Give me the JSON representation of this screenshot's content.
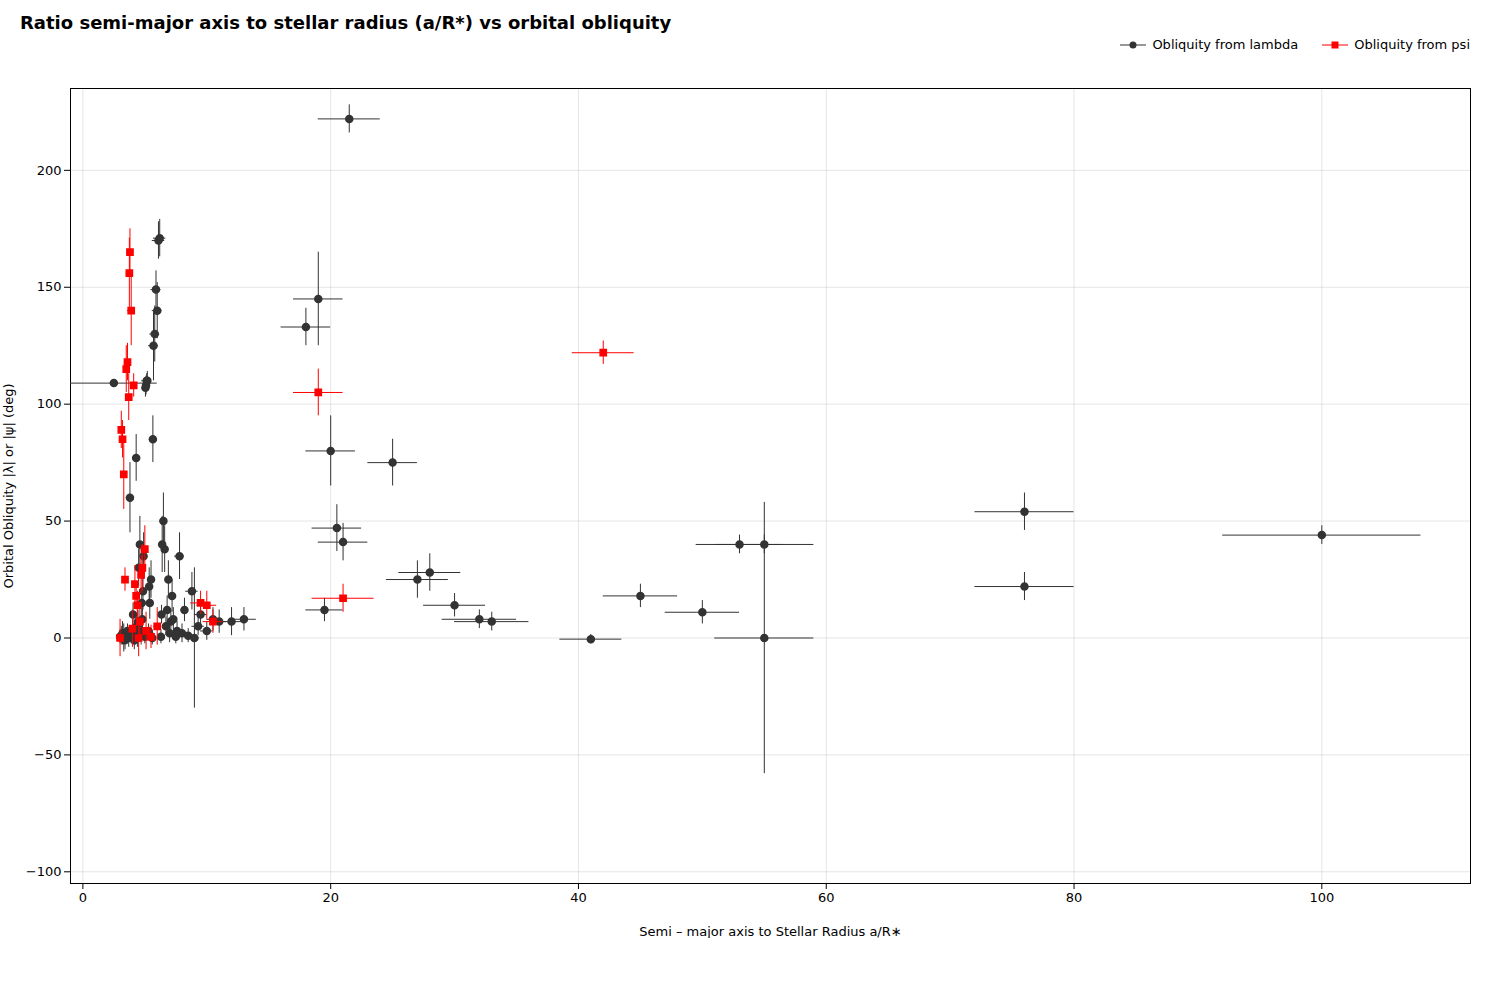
{
  "chart_data": {
    "type": "scatter",
    "title": "Ratio semi-major axis to stellar radius (a/R*) vs orbital obliquity",
    "xlabel": "Semi – major axis to Stellar Radius a/R∗",
    "ylabel": "Orbital Obliquity |λ| or |ψ| (deg)",
    "xlim": [
      -1,
      112
    ],
    "ylim": [
      -105,
      235
    ],
    "xticks": [
      0,
      20,
      40,
      60,
      80,
      100
    ],
    "yticks": [
      -100,
      -50,
      0,
      50,
      100,
      150,
      200
    ],
    "grid": true,
    "legend": "upper right",
    "series": [
      {
        "name": "Obliquity from lambda",
        "color": "#333333",
        "marker": "circle",
        "points": [
          {
            "x": 2.5,
            "y": 109.0,
            "xerr": 3.5,
            "yerr": 1.5
          },
          {
            "x": 3.0,
            "y": 0.5,
            "xerr": 0.2,
            "yerr": 3
          },
          {
            "x": 3.1,
            "y": 1.0,
            "xerr": 0.2,
            "yerr": 4
          },
          {
            "x": 3.2,
            "y": 2.0,
            "xerr": 0.2,
            "yerr": 5
          },
          {
            "x": 3.3,
            "y": 0.0,
            "xerr": 0.2,
            "yerr": 6
          },
          {
            "x": 3.4,
            "y": -1.0,
            "xerr": 0.15,
            "yerr": 4
          },
          {
            "x": 3.5,
            "y": 1.5,
            "xerr": 0.2,
            "yerr": 3
          },
          {
            "x": 3.6,
            "y": 3.0,
            "xerr": 0.2,
            "yerr": 3
          },
          {
            "x": 3.7,
            "y": 0.0,
            "xerr": 0.15,
            "yerr": 4
          },
          {
            "x": 3.8,
            "y": 60.0,
            "xerr": 0.3,
            "yerr": 15
          },
          {
            "x": 3.85,
            "y": 1.5,
            "xerr": 0.15,
            "yerr": 3
          },
          {
            "x": 3.9,
            "y": 0.5,
            "xerr": 0.15,
            "yerr": 3
          },
          {
            "x": 4.0,
            "y": 2.0,
            "xerr": 0.15,
            "yerr": 3
          },
          {
            "x": 4.05,
            "y": 10.0,
            "xerr": 0.2,
            "yerr": 5
          },
          {
            "x": 4.1,
            "y": 0.0,
            "xerr": 0.15,
            "yerr": 3
          },
          {
            "x": 4.15,
            "y": -1.0,
            "xerr": 0.15,
            "yerr": 4
          },
          {
            "x": 4.2,
            "y": 3.0,
            "xerr": 0.15,
            "yerr": 4
          },
          {
            "x": 4.25,
            "y": 1.0,
            "xerr": 0.15,
            "yerr": 4
          },
          {
            "x": 4.3,
            "y": 77.0,
            "xerr": 0.3,
            "yerr": 10
          },
          {
            "x": 4.35,
            "y": 5.0,
            "xerr": 0.15,
            "yerr": 4
          },
          {
            "x": 4.4,
            "y": 0.0,
            "xerr": 0.15,
            "yerr": 4
          },
          {
            "x": 4.45,
            "y": 7.0,
            "xerr": 0.2,
            "yerr": 5
          },
          {
            "x": 4.5,
            "y": 30.0,
            "xerr": 0.2,
            "yerr": 8
          },
          {
            "x": 4.55,
            "y": 4.0,
            "xerr": 0.15,
            "yerr": 3
          },
          {
            "x": 4.6,
            "y": 40.0,
            "xerr": 0.2,
            "yerr": 12
          },
          {
            "x": 4.65,
            "y": 2.0,
            "xerr": 0.15,
            "yerr": 3
          },
          {
            "x": 4.7,
            "y": 1.0,
            "xerr": 0.15,
            "yerr": 4
          },
          {
            "x": 4.75,
            "y": 15.0,
            "xerr": 0.2,
            "yerr": 6
          },
          {
            "x": 4.8,
            "y": 8.0,
            "xerr": 0.2,
            "yerr": 5
          },
          {
            "x": 4.85,
            "y": 20.0,
            "xerr": 0.2,
            "yerr": 8
          },
          {
            "x": 4.9,
            "y": 35.0,
            "xerr": 0.2,
            "yerr": 10
          },
          {
            "x": 5.0,
            "y": 0.5,
            "xerr": 0.15,
            "yerr": 3
          },
          {
            "x": 5.05,
            "y": 107.0,
            "xerr": 0.3,
            "yerr": 4
          },
          {
            "x": 5.1,
            "y": 108.0,
            "xerr": 0.3,
            "yerr": 4
          },
          {
            "x": 5.15,
            "y": 110.0,
            "xerr": 0.4,
            "yerr": 3
          },
          {
            "x": 5.2,
            "y": 110.0,
            "xerr": 0.3,
            "yerr": 4
          },
          {
            "x": 5.3,
            "y": 3.0,
            "xerr": 0.2,
            "yerr": 3
          },
          {
            "x": 5.35,
            "y": 22.0,
            "xerr": 0.2,
            "yerr": 8
          },
          {
            "x": 5.4,
            "y": 15.0,
            "xerr": 0.2,
            "yerr": 7
          },
          {
            "x": 5.45,
            "y": 1.0,
            "xerr": 0.15,
            "yerr": 3
          },
          {
            "x": 5.5,
            "y": 25.0,
            "xerr": 0.2,
            "yerr": 8
          },
          {
            "x": 5.6,
            "y": 0.0,
            "xerr": 0.2,
            "yerr": 3
          },
          {
            "x": 5.65,
            "y": 85.0,
            "xerr": 0.3,
            "yerr": 10
          },
          {
            "x": 5.7,
            "y": 125.0,
            "xerr": 0.4,
            "yerr": 15
          },
          {
            "x": 5.8,
            "y": 130.0,
            "xerr": 0.4,
            "yerr": 12
          },
          {
            "x": 5.9,
            "y": 149.0,
            "xerr": 0.4,
            "yerr": 8
          },
          {
            "x": 6.0,
            "y": 140.0,
            "xerr": 0.4,
            "yerr": 12
          },
          {
            "x": 6.1,
            "y": 170.0,
            "xerr": 0.5,
            "yerr": 8
          },
          {
            "x": 6.2,
            "y": 171.0,
            "xerr": 0.5,
            "yerr": 8
          },
          {
            "x": 6.3,
            "y": 0.5,
            "xerr": 0.2,
            "yerr": 3
          },
          {
            "x": 6.35,
            "y": 10.0,
            "xerr": 0.2,
            "yerr": 4
          },
          {
            "x": 6.4,
            "y": 40.0,
            "xerr": 0.3,
            "yerr": 12
          },
          {
            "x": 6.5,
            "y": 50.0,
            "xerr": 0.3,
            "yerr": 12
          },
          {
            "x": 6.6,
            "y": 38.0,
            "xerr": 0.25,
            "yerr": 10
          },
          {
            "x": 6.7,
            "y": 5.0,
            "xerr": 0.2,
            "yerr": 4
          },
          {
            "x": 6.8,
            "y": 12.0,
            "xerr": 0.2,
            "yerr": 6
          },
          {
            "x": 6.9,
            "y": 25.0,
            "xerr": 0.25,
            "yerr": 8
          },
          {
            "x": 7.0,
            "y": 2.0,
            "xerr": 0.2,
            "yerr": 4
          },
          {
            "x": 7.1,
            "y": 7.0,
            "xerr": 0.2,
            "yerr": 5
          },
          {
            "x": 7.2,
            "y": 18.0,
            "xerr": 0.3,
            "yerr": 7
          },
          {
            "x": 7.3,
            "y": 8.0,
            "xerr": 0.2,
            "yerr": 5
          },
          {
            "x": 7.5,
            "y": 0.5,
            "xerr": 0.2,
            "yerr": 3
          },
          {
            "x": 7.6,
            "y": 3.0,
            "xerr": 0.2,
            "yerr": 4
          },
          {
            "x": 7.8,
            "y": 35.0,
            "xerr": 0.4,
            "yerr": 10
          },
          {
            "x": 8.0,
            "y": 2.0,
            "xerr": 0.3,
            "yerr": 4
          },
          {
            "x": 8.2,
            "y": 12.0,
            "xerr": 0.3,
            "yerr": 5
          },
          {
            "x": 8.5,
            "y": 1.0,
            "xerr": 0.3,
            "yerr": 3
          },
          {
            "x": 8.8,
            "y": 20.0,
            "xerr": 0.5,
            "yerr": 8
          },
          {
            "x": 9.0,
            "y": 0.0,
            "xerr": 0.4,
            "yerr": 30
          },
          {
            "x": 9.3,
            "y": 5.0,
            "xerr": 0.5,
            "yerr": 4
          },
          {
            "x": 9.5,
            "y": 10.0,
            "xerr": 0.5,
            "yerr": 6
          },
          {
            "x": 10.0,
            "y": 3.0,
            "xerr": 0.5,
            "yerr": 4
          },
          {
            "x": 10.5,
            "y": 8.0,
            "xerr": 0.5,
            "yerr": 5
          },
          {
            "x": 11.0,
            "y": 7.0,
            "xerr": 0.6,
            "yerr": 5
          },
          {
            "x": 12.0,
            "y": 7.0,
            "xerr": 0.8,
            "yerr": 6
          },
          {
            "x": 13.0,
            "y": 8.0,
            "xerr": 1.0,
            "yerr": 5
          },
          {
            "x": 18.0,
            "y": 133.0,
            "xerr": 2.0,
            "yerr": 8
          },
          {
            "x": 19.0,
            "y": 145.0,
            "xerr": 2.0,
            "yerr": 20
          },
          {
            "x": 19.5,
            "y": 12.0,
            "xerr": 1.5,
            "yerr": 5
          },
          {
            "x": 20.0,
            "y": 80.0,
            "xerr": 2.0,
            "yerr": 15
          },
          {
            "x": 20.5,
            "y": 47.0,
            "xerr": 2.0,
            "yerr": 10
          },
          {
            "x": 21.0,
            "y": 41.0,
            "xerr": 2.0,
            "yerr": 8
          },
          {
            "x": 21.5,
            "y": 222.0,
            "xerr": 2.5,
            "yerr": 6
          },
          {
            "x": 25.0,
            "y": 75.0,
            "xerr": 2.0,
            "yerr": 10
          },
          {
            "x": 27.0,
            "y": 25.0,
            "xerr": 2.5,
            "yerr": 8
          },
          {
            "x": 28.0,
            "y": 28.0,
            "xerr": 2.5,
            "yerr": 8
          },
          {
            "x": 30.0,
            "y": 14.0,
            "xerr": 2.5,
            "yerr": 5
          },
          {
            "x": 32.0,
            "y": 8.0,
            "xerr": 3.0,
            "yerr": 4
          },
          {
            "x": 33.0,
            "y": 7.0,
            "xerr": 3.0,
            "yerr": 4
          },
          {
            "x": 41.0,
            "y": -0.5,
            "xerr": 2.5,
            "yerr": 2
          },
          {
            "x": 45.0,
            "y": 18.0,
            "xerr": 3.0,
            "yerr": 5
          },
          {
            "x": 50.0,
            "y": 11.0,
            "xerr": 3.0,
            "yerr": 5
          },
          {
            "x": 53.0,
            "y": 40.0,
            "xerr": 3.5,
            "yerr": 4
          },
          {
            "x": 55.0,
            "y": 40.0,
            "xerr": 4.0,
            "yerr": 4
          },
          {
            "x": 55.0,
            "y": 0.0,
            "xerr": 4.0,
            "yerr": 58
          },
          {
            "x": 76.0,
            "y": 22.0,
            "xerr": 4.0,
            "yerr": 6
          },
          {
            "x": 76.0,
            "y": 54.0,
            "xerr": 4.0,
            "yerr": 8
          },
          {
            "x": 100.0,
            "y": 44.0,
            "xerr": 8.0,
            "yerr": 4
          }
        ]
      },
      {
        "name": "Obliquity from psi",
        "color": "red",
        "marker": "square",
        "points": [
          {
            "x": 3.0,
            "y": 0.0,
            "xerr": 0.15,
            "yerr": 8
          },
          {
            "x": 3.1,
            "y": 89.0,
            "xerr": 0.2,
            "yerr": 8
          },
          {
            "x": 3.2,
            "y": 85.0,
            "xerr": 0.2,
            "yerr": 8
          },
          {
            "x": 3.3,
            "y": 70.0,
            "xerr": 0.2,
            "yerr": 15
          },
          {
            "x": 3.4,
            "y": 25.0,
            "xerr": 0.2,
            "yerr": 5
          },
          {
            "x": 3.5,
            "y": 115.0,
            "xerr": 0.2,
            "yerr": 10
          },
          {
            "x": 3.6,
            "y": 118.0,
            "xerr": 0.25,
            "yerr": 8
          },
          {
            "x": 3.7,
            "y": 103.0,
            "xerr": 0.2,
            "yerr": 10
          },
          {
            "x": 3.75,
            "y": 156.0,
            "xerr": 0.25,
            "yerr": 15
          },
          {
            "x": 3.8,
            "y": 165.0,
            "xerr": 0.25,
            "yerr": 10
          },
          {
            "x": 3.9,
            "y": 140.0,
            "xerr": 0.3,
            "yerr": 15
          },
          {
            "x": 4.0,
            "y": 4.0,
            "xerr": 0.2,
            "yerr": 8
          },
          {
            "x": 4.1,
            "y": 108.0,
            "xerr": 0.2,
            "yerr": 5
          },
          {
            "x": 4.2,
            "y": 23.0,
            "xerr": 0.2,
            "yerr": 8
          },
          {
            "x": 4.3,
            "y": 18.0,
            "xerr": 0.2,
            "yerr": 6
          },
          {
            "x": 4.4,
            "y": 14.0,
            "xerr": 0.2,
            "yerr": 6
          },
          {
            "x": 4.5,
            "y": 0.0,
            "xerr": 0.2,
            "yerr": 8
          },
          {
            "x": 4.6,
            "y": 7.0,
            "xerr": 0.2,
            "yerr": 8
          },
          {
            "x": 4.7,
            "y": 27.0,
            "xerr": 0.25,
            "yerr": 8
          },
          {
            "x": 4.8,
            "y": 30.0,
            "xerr": 0.25,
            "yerr": 10
          },
          {
            "x": 5.0,
            "y": 38.0,
            "xerr": 0.3,
            "yerr": 10
          },
          {
            "x": 5.1,
            "y": 3.0,
            "xerr": 0.2,
            "yerr": 8
          },
          {
            "x": 5.5,
            "y": 0.5,
            "xerr": 0.3,
            "yerr": 5
          },
          {
            "x": 6.0,
            "y": 5.0,
            "xerr": 0.3,
            "yerr": 8
          },
          {
            "x": 9.5,
            "y": 15.0,
            "xerr": 0.8,
            "yerr": 5
          },
          {
            "x": 10.0,
            "y": 14.0,
            "xerr": 0.8,
            "yerr": 6
          },
          {
            "x": 10.5,
            "y": 7.0,
            "xerr": 0.8,
            "yerr": 5
          },
          {
            "x": 19.0,
            "y": 105.0,
            "xerr": 2.0,
            "yerr": 10
          },
          {
            "x": 21.0,
            "y": 17.0,
            "xerr": 2.5,
            "yerr": 6
          },
          {
            "x": 42.0,
            "y": 122.0,
            "xerr": 2.5,
            "yerr": 5
          }
        ]
      }
    ]
  }
}
